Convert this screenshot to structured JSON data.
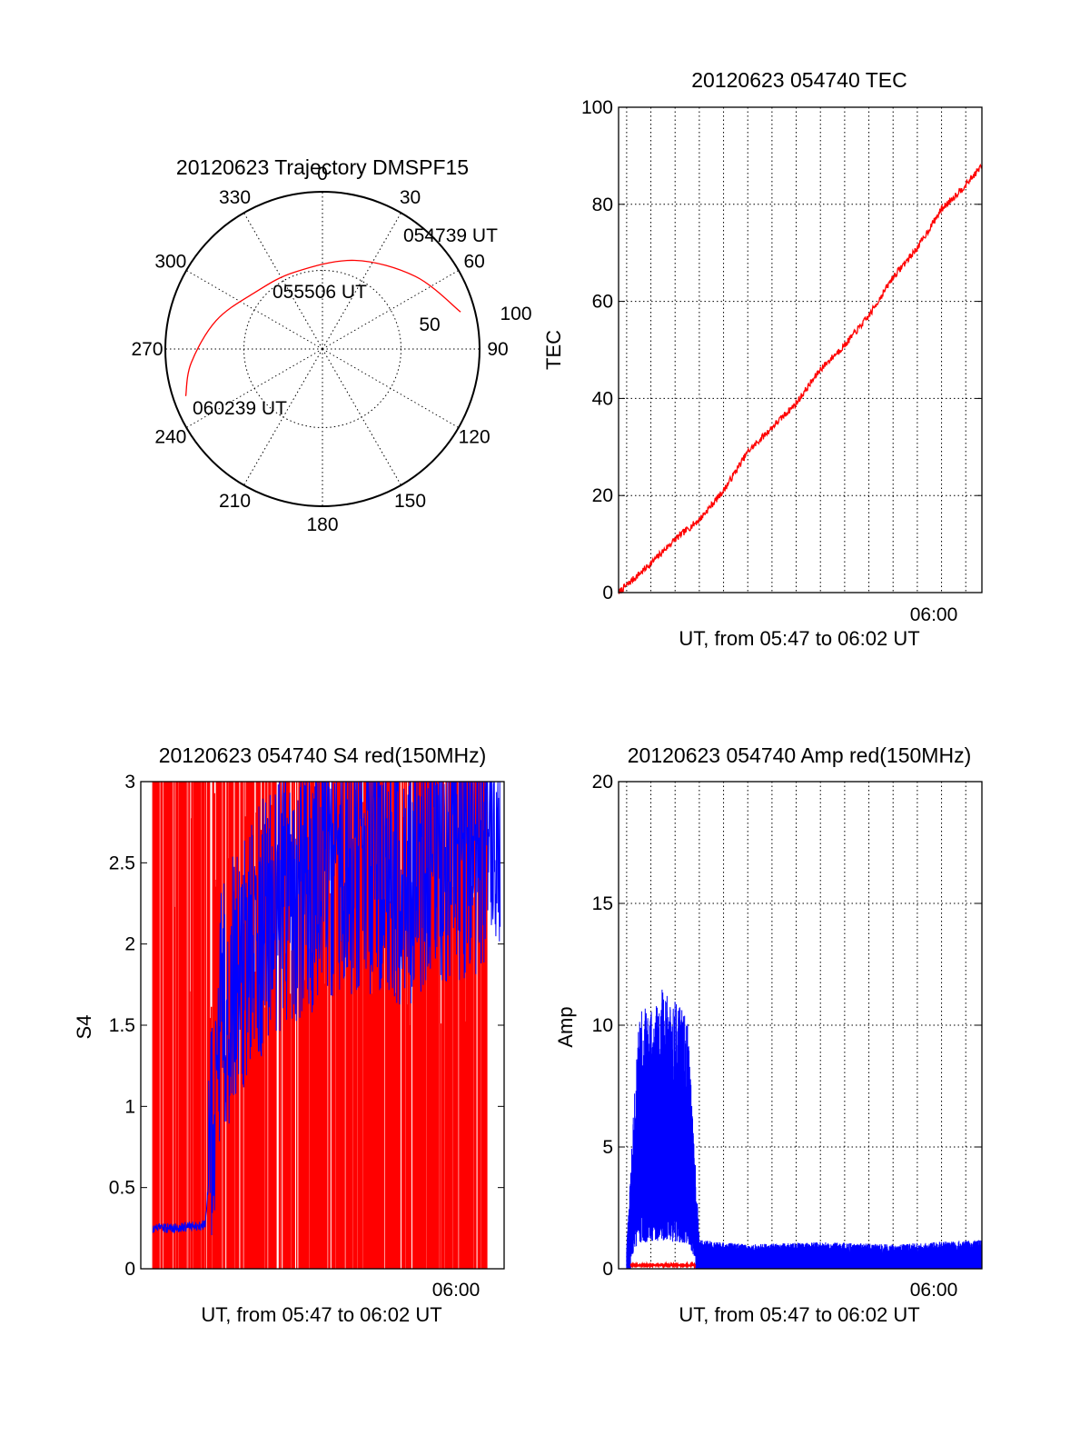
{
  "colors": {
    "red_series": "#ff0000",
    "blue_series": "#0000ff",
    "axes": "#000000"
  },
  "chart_data": [
    {
      "id": "trajectory",
      "type": "polar",
      "title": "20120623 Trajectory DMSPF15",
      "azimuth_labels": [
        "0",
        "30",
        "60",
        "90",
        "120",
        "150",
        "180",
        "210",
        "240",
        "270",
        "300",
        "330"
      ],
      "radial_labels": [
        "50",
        "100"
      ],
      "rlim": [
        0,
        100
      ],
      "grid": true,
      "series": [
        {
          "color": "#ff0000",
          "points": [
            {
              "az": 75,
              "r": 91
            },
            {
              "az": 52,
              "r": 75
            },
            {
              "az": 20,
              "r": 60
            },
            {
              "az": 340,
              "r": 52
            },
            {
              "az": 310,
              "r": 56
            },
            {
              "az": 285,
              "r": 70
            },
            {
              "az": 264,
              "r": 84
            },
            {
              "az": 251,
              "r": 92
            }
          ]
        }
      ],
      "annotations": [
        "054739 UT",
        "055506 UT",
        "060239 UT"
      ]
    },
    {
      "id": "tec",
      "type": "line",
      "title": "20120623 054740 TEC",
      "xlabel": "UT, from 05:47 to 06:02 UT",
      "ylabel": "TEC",
      "xlim": [
        "05:47:40",
        "06:02:40"
      ],
      "ylim": [
        0,
        100
      ],
      "yticks": [
        "0",
        "20",
        "40",
        "60",
        "80",
        "100"
      ],
      "xtick_label": "06:00",
      "grid": true,
      "series": [
        {
          "color": "#ff0000",
          "x": [
            "05:47:40",
            "05:49:00",
            "05:50:00",
            "05:51:00",
            "05:52:00",
            "05:53:00",
            "05:54:00",
            "05:55:00",
            "05:56:00",
            "05:57:00",
            "05:58:00",
            "05:59:00",
            "06:00:00",
            "06:01:00",
            "06:02:00",
            "06:02:40"
          ],
          "values": [
            0,
            6,
            11,
            15,
            21,
            29,
            34,
            39,
            46,
            51,
            57,
            65,
            71,
            79,
            84,
            88
          ]
        }
      ]
    },
    {
      "id": "s4",
      "type": "line",
      "title": "20120623 054740 S4 red(150MHz)",
      "xlabel": "UT, from 05:47 to 06:02 UT",
      "ylabel": "S4",
      "xlim": [
        "05:47:40",
        "06:02:40"
      ],
      "ylim": [
        0,
        3
      ],
      "yticks": [
        "0",
        "0.5",
        "1",
        "1.5",
        "2",
        "2.5",
        "3"
      ],
      "xtick_label": "06:00",
      "grid": true,
      "series": [
        {
          "color": "#ff0000",
          "x": [
            "05:48:10",
            "05:50:40",
            "05:52:00",
            "05:55:00",
            "05:58:00",
            "06:02:00"
          ],
          "values": [
            3.0,
            3.0,
            3.0,
            3.0,
            3.0,
            3.0
          ],
          "note": "dense vertical lines spanning 0 to 3"
        },
        {
          "color": "#0000ff",
          "x": [
            "05:48:10",
            "05:49:00",
            "05:50:20",
            "05:51:00",
            "05:53:00",
            "05:56:00",
            "05:59:00",
            "06:02:30"
          ],
          "values": [
            0.25,
            0.25,
            0.27,
            1.6,
            2.2,
            2.5,
            2.4,
            2.7
          ]
        }
      ]
    },
    {
      "id": "amp",
      "type": "line",
      "title": "20120623 054740 Amp red(150MHz)",
      "xlabel": "UT, from 05:47 to 06:02 UT",
      "ylabel": "Amp",
      "xlim": [
        "05:47:40",
        "06:02:40"
      ],
      "ylim": [
        0,
        20
      ],
      "yticks": [
        "0",
        "5",
        "10",
        "15",
        "20"
      ],
      "xtick_label": "06:00",
      "grid": true,
      "series": [
        {
          "color": "#0000ff",
          "x": [
            "05:48:00",
            "05:48:30",
            "05:49:30",
            "05:50:30",
            "05:51:00",
            "05:53:00",
            "05:56:00",
            "05:59:00",
            "06:02:40"
          ],
          "values": [
            1.0,
            10.5,
            11.5,
            10.5,
            1.2,
            1.0,
            1.1,
            1.0,
            1.2
          ]
        },
        {
          "color": "#ff0000",
          "x": [
            "05:48:10",
            "05:49:00",
            "05:50:00",
            "05:50:50"
          ],
          "values": [
            0.15,
            0.15,
            0.15,
            0.15
          ]
        }
      ]
    }
  ]
}
